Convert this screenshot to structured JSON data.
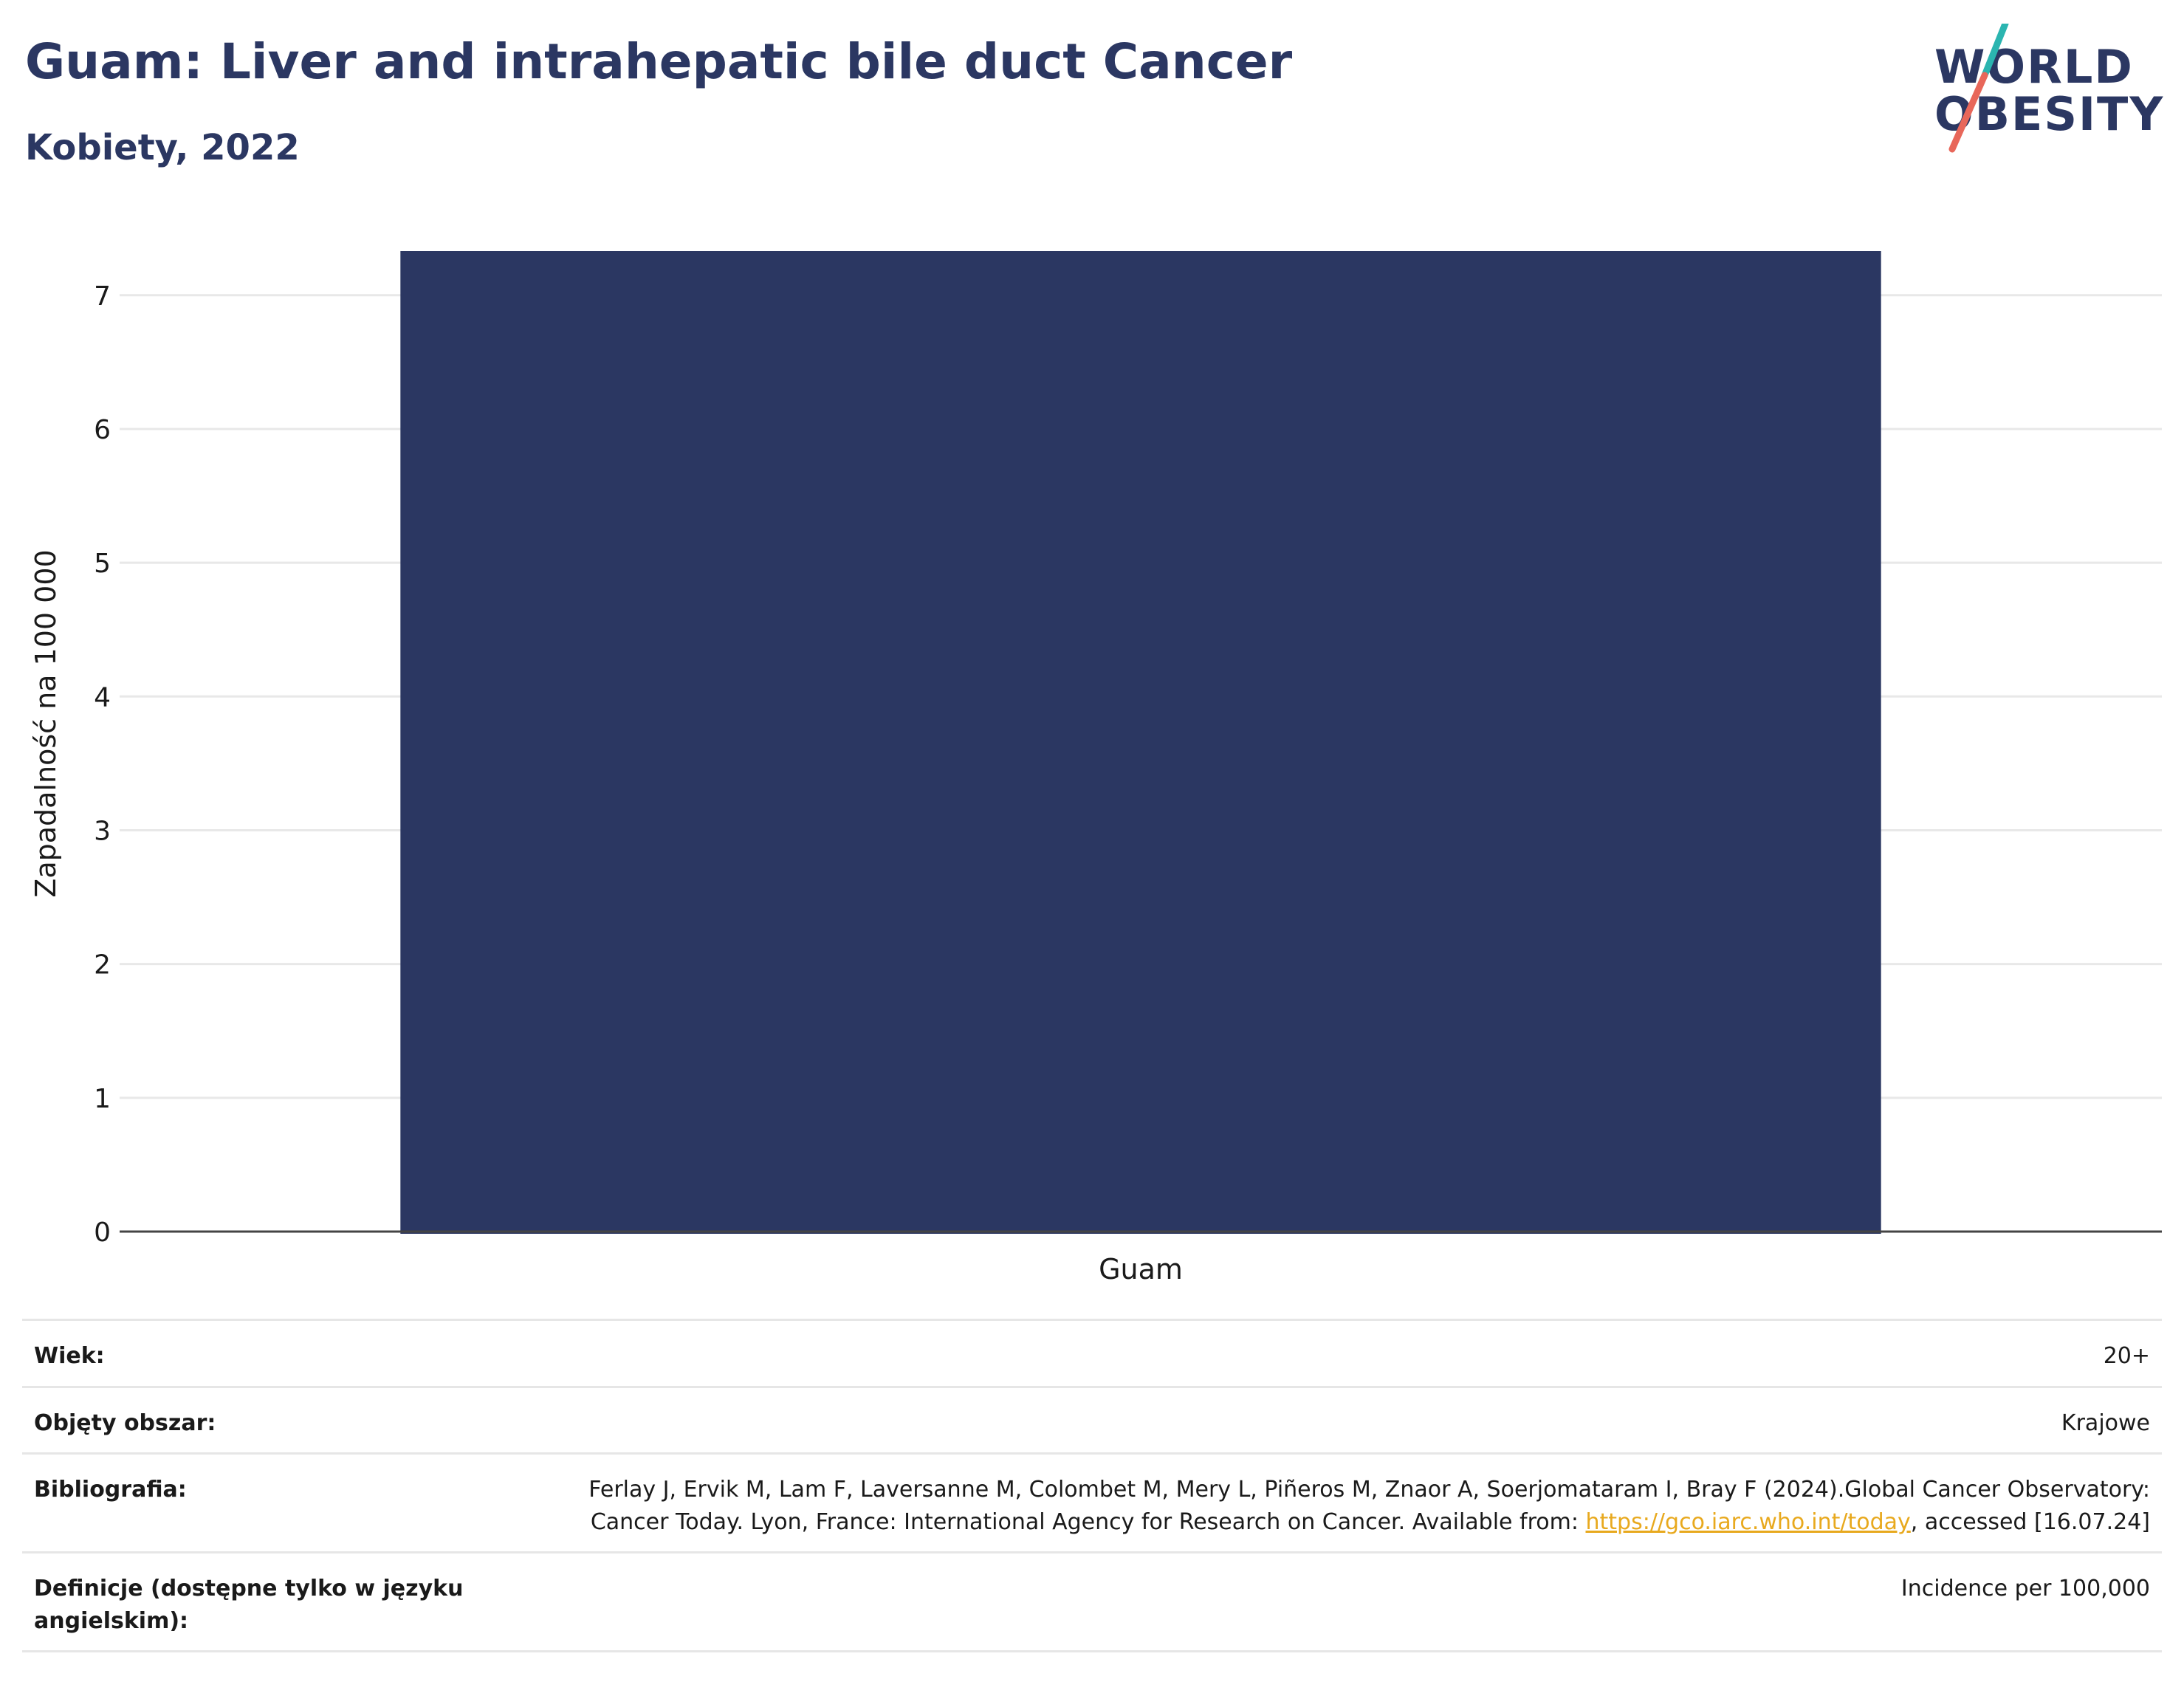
{
  "header": {
    "title": "Guam: Liver and intrahepatic bile duct Cancer",
    "subtitle": "Kobiety, 2022"
  },
  "logo": {
    "line1": "WORLD",
    "line2": "OBESITY",
    "colors": {
      "text": "#2b3762",
      "slash_top": "#2bb5b0",
      "slash_bottom": "#e8675a"
    }
  },
  "chart_data": {
    "type": "bar",
    "categories": [
      "Guam"
    ],
    "values": [
      7.33
    ],
    "title": "",
    "xlabel": "",
    "ylabel": "Zapadalność na 100 000",
    "ylim": [
      0,
      7.33
    ],
    "yticks": [
      0,
      1,
      2,
      3,
      4,
      5,
      6,
      7
    ],
    "grid": true,
    "bar_color": "#2b3762"
  },
  "info": {
    "age_label": "Wiek:",
    "age_value": "20+",
    "coverage_label": "Objęty obszar:",
    "coverage_value": "Krajowe",
    "bibliography_label": "Bibliografia:",
    "bibliography_text_1": "Ferlay J, Ervik M, Lam F, Laversanne M, Colombet M, Mery L, Piñeros M, Znaor A, Soerjomataram I, Bray F (2024).Global Cancer Observatory: Cancer Today. Lyon, France: International Agency for Research on Cancer. Available from: ",
    "bibliography_link": "https://gco.iarc.who.int/today",
    "bibliography_text_2": ", accessed [16.07.24]",
    "definitions_label": "Definicje (dostępne tylko w języku angielskim):",
    "definitions_value": "Incidence per 100,000"
  }
}
